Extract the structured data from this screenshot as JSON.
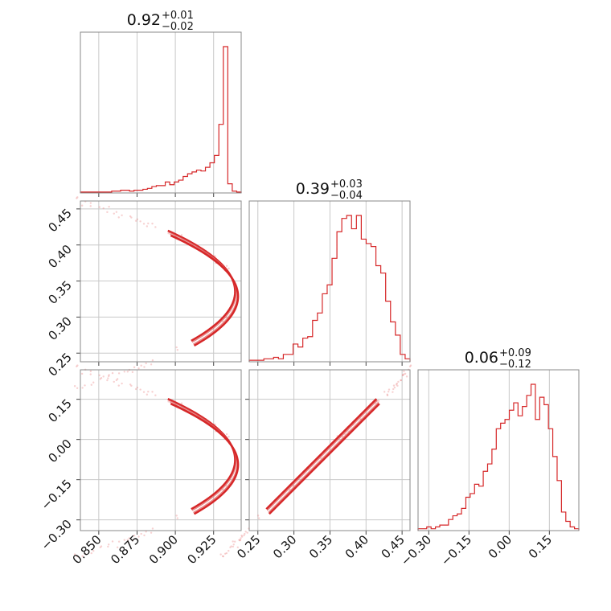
{
  "chart_data": {
    "type": "corner",
    "color": "#d62728",
    "parameters": [
      {
        "median": "0.92",
        "plus": "+0.01",
        "minus": "−0.02",
        "range": [
          0.838,
          0.943
        ],
        "ticks": [
          0.85,
          0.875,
          0.9,
          0.925
        ],
        "tick_labels": [
          "0.850",
          "0.875",
          "0.900",
          "0.925"
        ]
      },
      {
        "median": "0.39",
        "plus": "+0.03",
        "minus": "−0.04",
        "range": [
          0.238,
          0.461
        ],
        "ticks": [
          0.25,
          0.3,
          0.35,
          0.4,
          0.45
        ],
        "tick_labels": [
          "0.25",
          "0.30",
          "0.35",
          "0.40",
          "0.45"
        ]
      },
      {
        "median": "0.06",
        "plus": "+0.09",
        "minus": "−0.12",
        "range": [
          -0.34,
          0.26
        ],
        "ticks": [
          -0.3,
          -0.15,
          0.0,
          0.15
        ],
        "tick_labels": [
          "−0.30",
          "−0.15",
          "0.00",
          "0.15"
        ]
      }
    ],
    "histograms": [
      {
        "param": 0,
        "bin_edges": [
          0.838,
          0.943
        ],
        "counts": [
          1,
          1,
          1,
          1,
          1,
          1,
          1,
          2,
          2,
          3,
          3,
          2,
          3,
          3,
          4,
          5,
          7,
          8,
          8,
          12,
          9,
          12,
          14,
          18,
          21,
          23,
          25,
          24,
          28,
          33,
          41,
          75,
          160,
          10,
          2,
          1
        ]
      },
      {
        "param": 1,
        "bin_edges": [
          0.238,
          0.461
        ],
        "counts": [
          1,
          1,
          1,
          2,
          2,
          3,
          2,
          5,
          5,
          12,
          10,
          16,
          17,
          28,
          33,
          46,
          52,
          70,
          88,
          97,
          99,
          90,
          99,
          83,
          80,
          78,
          65,
          60,
          41,
          27,
          18,
          5,
          2
        ]
      },
      {
        "param": 2,
        "bin_edges": [
          -0.34,
          0.26
        ],
        "counts": [
          1,
          1,
          2,
          1,
          2,
          3,
          3,
          6,
          8,
          9,
          12,
          18,
          20,
          25,
          24,
          32,
          36,
          44,
          55,
          58,
          60,
          65,
          69,
          62,
          67,
          73,
          79,
          60,
          72,
          68,
          55,
          40,
          27,
          10,
          5,
          2,
          1
        ]
      }
    ]
  }
}
